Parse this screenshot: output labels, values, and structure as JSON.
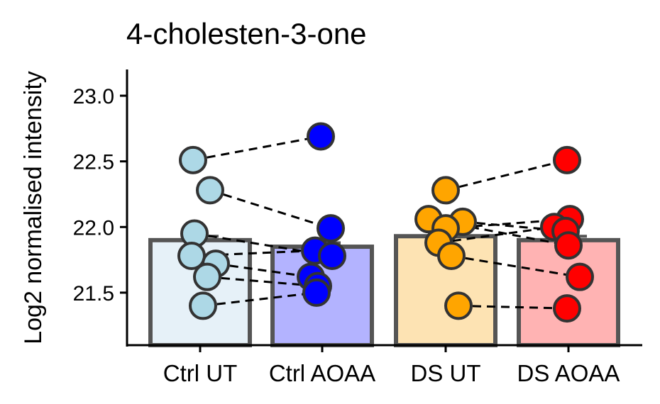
{
  "chart_data": {
    "type": "bar",
    "title": "4-cholesten-3-one",
    "xlabel": "",
    "ylabel": "Log2 normalised intensity",
    "ylim": [
      21.1,
      23.2
    ],
    "yticks": [
      21.5,
      22.0,
      22.5,
      23.0
    ],
    "ytick_labels": [
      "21.5",
      "22.0",
      "22.5",
      "23.0"
    ],
    "categories": [
      "Ctrl UT",
      "Ctrl AOAA",
      "DS UT",
      "DS AOAA"
    ],
    "bar_fill_colors": [
      "#e6f1f8",
      "#b3b3ff",
      "#fde3b3",
      "#ffb3b3"
    ],
    "point_colors": [
      "#add8e6",
      "#0000ff",
      "#ffa500",
      "#ff0000"
    ],
    "bar_outline_color": "#555555",
    "grid": false,
    "legend": "none",
    "means": [
      21.9,
      21.85,
      21.93,
      21.9
    ],
    "errors": [
      0.03,
      0.03,
      0.03,
      0.03
    ],
    "points": [
      [
        22.51,
        22.28,
        21.95,
        21.78,
        21.72,
        21.62,
        21.4
      ],
      [
        22.69,
        21.99,
        21.82,
        21.78,
        21.62,
        21.55,
        21.5
      ],
      [
        22.28,
        22.06,
        22.04,
        21.99,
        21.88,
        21.78,
        21.4
      ],
      [
        22.51,
        22.06,
        22.0,
        21.97,
        21.86,
        21.62,
        21.38
      ]
    ],
    "paired_lines": [
      {
        "from": [
          0,
          22.51
        ],
        "to": [
          1,
          22.69
        ]
      },
      {
        "from": [
          0,
          22.28
        ],
        "to": [
          1,
          21.99
        ]
      },
      {
        "from": [
          0,
          21.95
        ],
        "to": [
          1,
          21.78
        ]
      },
      {
        "from": [
          0,
          21.78
        ],
        "to": [
          1,
          21.82
        ]
      },
      {
        "from": [
          0,
          21.72
        ],
        "to": [
          1,
          21.62
        ]
      },
      {
        "from": [
          0,
          21.62
        ],
        "to": [
          1,
          21.55
        ]
      },
      {
        "from": [
          0,
          21.4
        ],
        "to": [
          1,
          21.5
        ]
      },
      {
        "from": [
          2,
          22.28
        ],
        "to": [
          3,
          22.51
        ]
      },
      {
        "from": [
          2,
          22.06
        ],
        "to": [
          3,
          21.86
        ]
      },
      {
        "from": [
          2,
          22.04
        ],
        "to": [
          3,
          21.97
        ]
      },
      {
        "from": [
          2,
          21.99
        ],
        "to": [
          3,
          22.06
        ]
      },
      {
        "from": [
          2,
          21.88
        ],
        "to": [
          3,
          22.0
        ]
      },
      {
        "from": [
          2,
          21.78
        ],
        "to": [
          3,
          21.62
        ]
      },
      {
        "from": [
          2,
          21.4
        ],
        "to": [
          3,
          21.38
        ]
      }
    ]
  }
}
